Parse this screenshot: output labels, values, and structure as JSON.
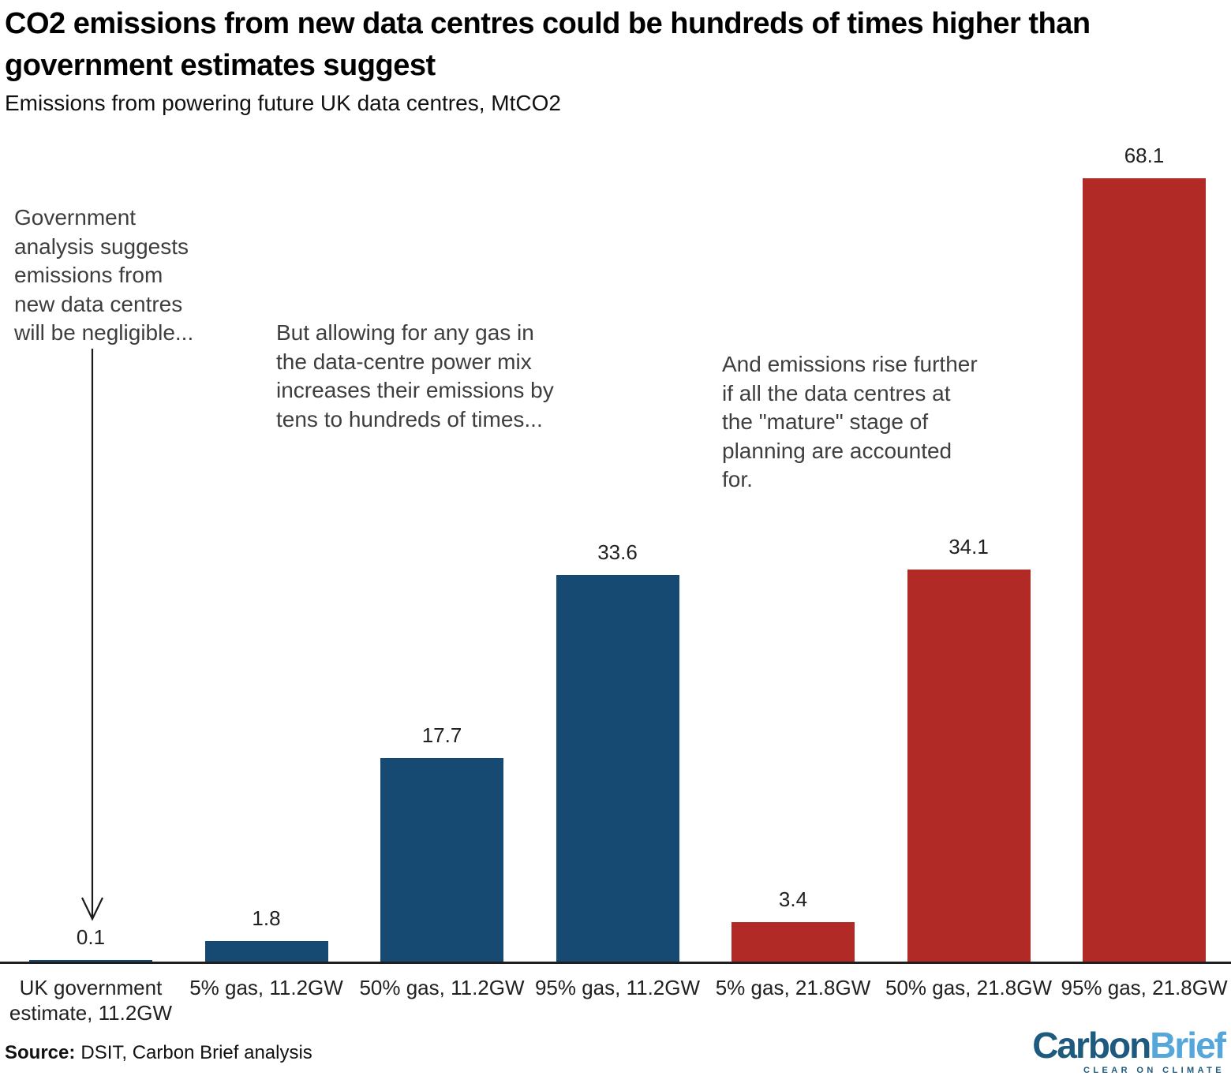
{
  "header": {
    "title_line1": "CO2 emissions from new data centres could be hundreds of times higher than",
    "title_line2": "government estimates suggest",
    "subtitle": "Emissions from powering future UK data centres, MtCO2"
  },
  "chart_data": {
    "type": "bar",
    "title": "CO2 emissions from new data centres could be hundreds of times higher than government estimates suggest",
    "subtitle": "Emissions from powering future UK data centres, MtCO2",
    "ylabel": "MtCO2",
    "xlabel": "",
    "categories": [
      "UK government\nestimate, 11.2GW",
      "5% gas, 11.2GW",
      "50% gas, 11.2GW",
      "95% gas, 11.2GW",
      "5% gas, 21.8GW",
      "50% gas, 21.8GW",
      "95% gas, 21.8GW"
    ],
    "values": [
      0.1,
      1.8,
      17.7,
      33.6,
      3.4,
      34.1,
      68.1
    ],
    "value_labels": [
      "0.1",
      "1.8",
      "17.7",
      "33.6",
      "3.4",
      "34.1",
      "68.1"
    ],
    "bar_colors": [
      "#164A73",
      "#164A73",
      "#164A73",
      "#164A73",
      "#B12A25",
      "#B12A25",
      "#B12A25"
    ],
    "series_meaning": {
      "blue_11_2GW": "#164A73",
      "red_21_8GW": "#B12A25"
    },
    "ylim": [
      0,
      70
    ],
    "grid": false,
    "legend": "none",
    "value_labels_shown": true
  },
  "annotations": [
    {
      "text": "Government\nanalysis suggests\nemissions from\nnew data centres\nwill be negligible..."
    },
    {
      "text": "But allowing for any gas in\nthe data-centre power mix\nincreases their emissions by\ntens to hundreds of times..."
    },
    {
      "text": "And emissions rise further\nif all the data centres at\nthe \"mature\" stage of\nplanning are accounted\nfor."
    }
  ],
  "footer": {
    "source_label": "Source:",
    "source_text": "DSIT, Carbon Brief analysis",
    "logo_part1": "Carbon",
    "logo_part2": "Brief",
    "logo_tagline": "CLEAR ON CLIMATE"
  },
  "colors": {
    "bar_blue": "#164A73",
    "bar_red": "#B12A25",
    "axis": "#1F1F1F",
    "annotation_text": "#3E3E3E",
    "logo_dark_blue": "#1E5A7D",
    "logo_light_blue": "#55A6DA"
  }
}
